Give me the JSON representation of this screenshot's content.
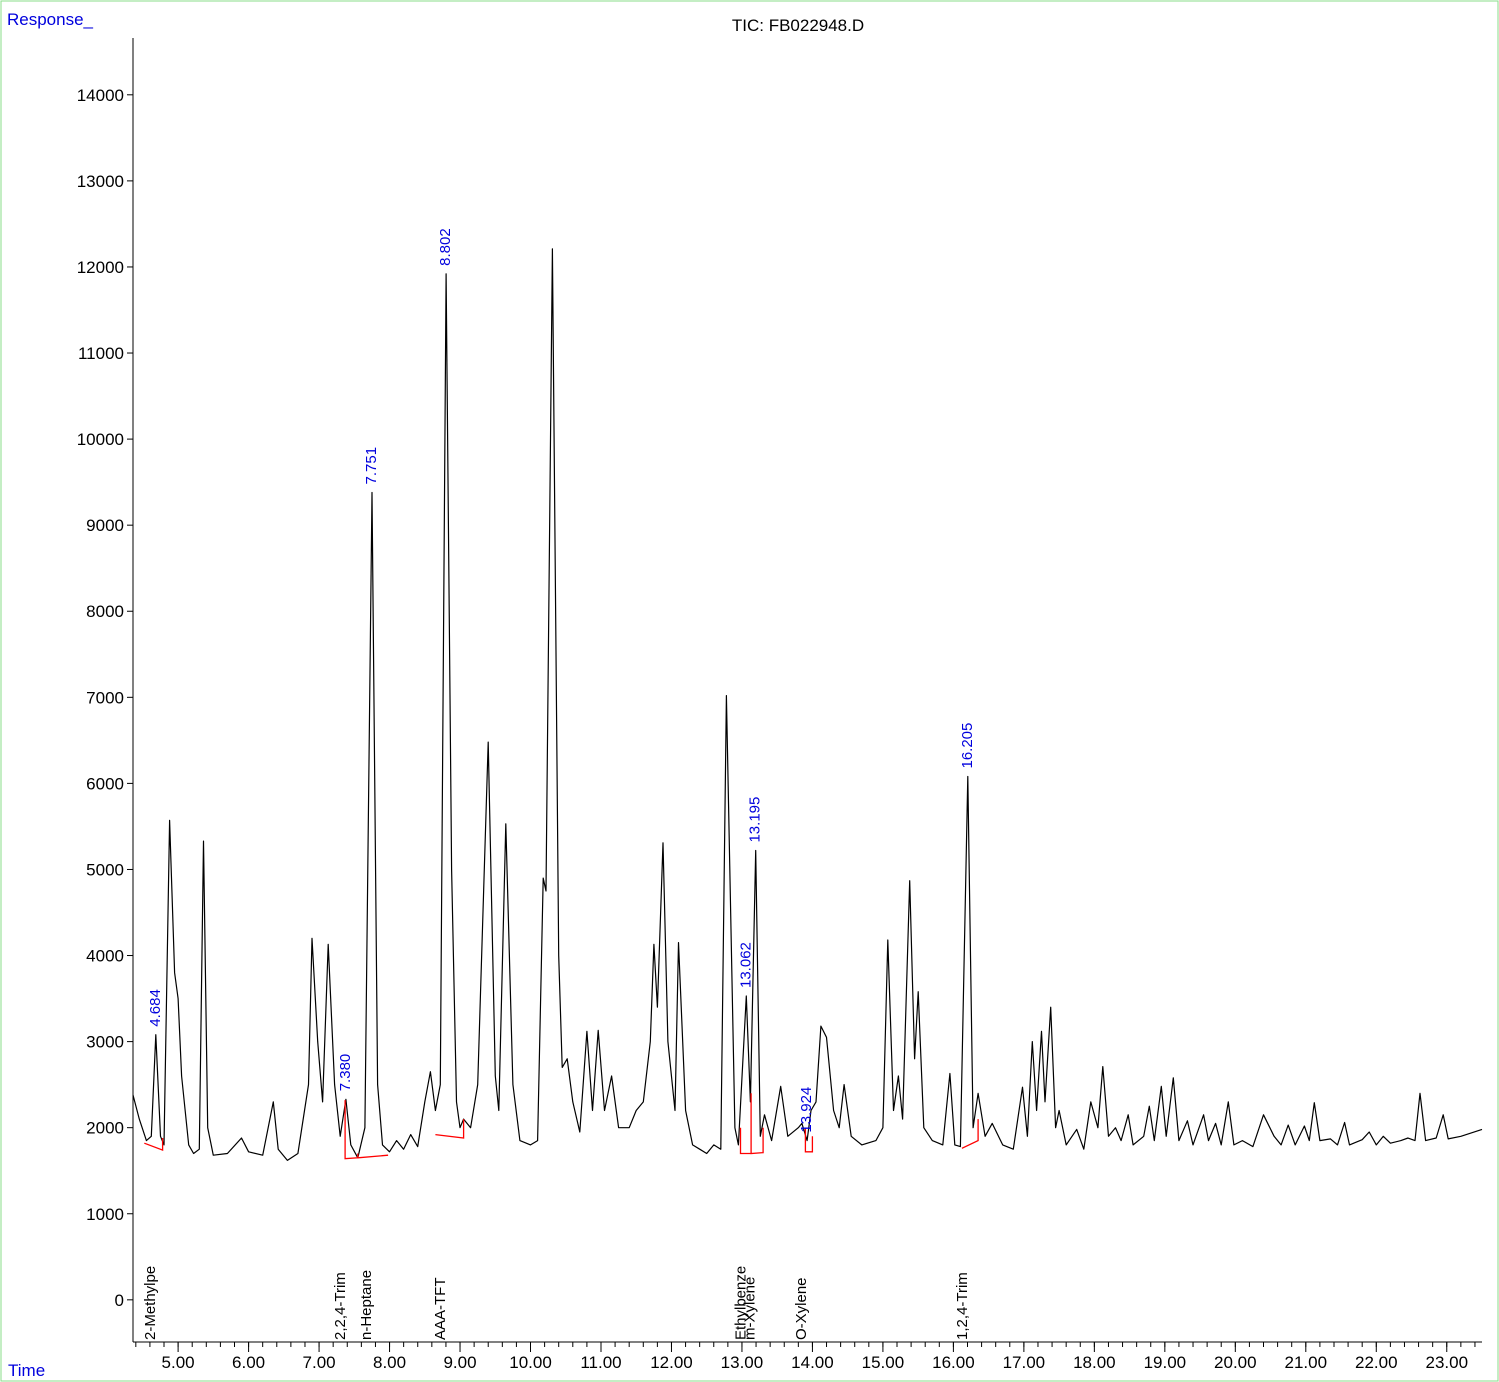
{
  "chart_data": {
    "type": "line",
    "title": "TIC: FB022948.D",
    "ylabel": "Response_",
    "xlabel": "Time",
    "color": "#000000",
    "baseline_color": "#ff0000",
    "label_color": "#0000dd",
    "xlim": [
      4.36,
      23.5
    ],
    "ylim": [
      -490,
      14660
    ],
    "xticks": [
      {
        "value": 5,
        "label": "5.00"
      },
      {
        "value": 6,
        "label": "6.00"
      },
      {
        "value": 7,
        "label": "7.00"
      },
      {
        "value": 8,
        "label": "8.00"
      },
      {
        "value": 9,
        "label": "9.00"
      },
      {
        "value": 10,
        "label": "10.00"
      },
      {
        "value": 11,
        "label": "11.00"
      },
      {
        "value": 12,
        "label": "12.00"
      },
      {
        "value": 13,
        "label": "13.00"
      },
      {
        "value": 14,
        "label": "14.00"
      },
      {
        "value": 15,
        "label": "15.00"
      },
      {
        "value": 16,
        "label": "16.00"
      },
      {
        "value": 17,
        "label": "17.00"
      },
      {
        "value": 18,
        "label": "18.00"
      },
      {
        "value": 19,
        "label": "19.00"
      },
      {
        "value": 20,
        "label": "20.00"
      },
      {
        "value": 21,
        "label": "21.00"
      },
      {
        "value": 22,
        "label": "22.00"
      },
      {
        "value": 23,
        "label": "23.00"
      }
    ],
    "xminor": 0.2,
    "yticks": [
      0,
      1000,
      2000,
      3000,
      4000,
      5000,
      6000,
      7000,
      8000,
      9000,
      10000,
      11000,
      12000,
      13000,
      14000
    ],
    "x": [
      4.36,
      4.45,
      4.55,
      4.62,
      4.684,
      4.75,
      4.8,
      4.88,
      4.95,
      5.0,
      5.05,
      5.15,
      5.22,
      5.3,
      5.36,
      5.42,
      5.5,
      5.7,
      5.9,
      6.0,
      6.2,
      6.35,
      6.42,
      6.55,
      6.7,
      6.85,
      6.9,
      6.98,
      7.05,
      7.13,
      7.22,
      7.3,
      7.38,
      7.45,
      7.55,
      7.65,
      7.751,
      7.83,
      7.9,
      8.0,
      8.1,
      8.2,
      8.3,
      8.4,
      8.5,
      8.58,
      8.65,
      8.72,
      8.802,
      8.88,
      8.95,
      9.0,
      9.05,
      9.15,
      9.25,
      9.4,
      9.5,
      9.55,
      9.65,
      9.75,
      9.85,
      10.0,
      10.1,
      10.18,
      10.22,
      10.31,
      10.4,
      10.45,
      10.52,
      10.6,
      10.7,
      10.8,
      10.88,
      10.96,
      11.05,
      11.15,
      11.25,
      11.4,
      11.5,
      11.6,
      11.7,
      11.75,
      11.8,
      11.88,
      11.95,
      12.05,
      12.1,
      12.2,
      12.3,
      12.4,
      12.5,
      12.6,
      12.7,
      12.78,
      12.9,
      12.95,
      13.062,
      13.12,
      13.195,
      13.26,
      13.32,
      13.42,
      13.55,
      13.65,
      13.8,
      13.85,
      13.924,
      13.98,
      14.05,
      14.12,
      14.2,
      14.3,
      14.38,
      14.45,
      14.55,
      14.7,
      14.9,
      15.0,
      15.07,
      15.15,
      15.22,
      15.28,
      15.38,
      15.45,
      15.5,
      15.58,
      15.7,
      15.85,
      15.95,
      16.02,
      16.1,
      16.205,
      16.28,
      16.35,
      16.45,
      16.55,
      16.7,
      16.85,
      16.98,
      17.05,
      17.12,
      17.18,
      17.25,
      17.3,
      17.38,
      17.45,
      17.5,
      17.6,
      17.75,
      17.85,
      17.95,
      18.05,
      18.12,
      18.2,
      18.3,
      18.38,
      18.48,
      18.55,
      18.7,
      18.78,
      18.85,
      18.95,
      19.02,
      19.12,
      19.2,
      19.32,
      19.4,
      19.55,
      19.62,
      19.72,
      19.8,
      19.9,
      19.98,
      20.1,
      20.25,
      20.4,
      20.55,
      20.65,
      20.75,
      20.85,
      20.98,
      21.05,
      21.12,
      21.2,
      21.35,
      21.45,
      21.55,
      21.62,
      21.8,
      21.9,
      22.0,
      22.1,
      22.2,
      22.35,
      22.45,
      22.55,
      22.62,
      22.7,
      22.85,
      22.95,
      23.02,
      23.2,
      23.5
    ],
    "values": [
      2380,
      2100,
      1850,
      1900,
      3080,
      1900,
      1800,
      5570,
      3800,
      3500,
      2600,
      1800,
      1700,
      1750,
      5330,
      2000,
      1680,
      1700,
      1880,
      1720,
      1680,
      2300,
      1750,
      1620,
      1700,
      2500,
      4200,
      3000,
      2300,
      4130,
      2500,
      1900,
      2330,
      1800,
      1650,
      2000,
      9380,
      2500,
      1800,
      1720,
      1850,
      1750,
      1920,
      1780,
      2300,
      2650,
      2200,
      2500,
      11920,
      5000,
      2300,
      2000,
      2100,
      2000,
      2500,
      6480,
      2600,
      2200,
      5530,
      2500,
      1850,
      1800,
      1850,
      4900,
      4750,
      12210,
      4000,
      2700,
      2800,
      2300,
      1950,
      3120,
      2200,
      3130,
      2200,
      2600,
      2000,
      2000,
      2200,
      2300,
      3000,
      4130,
      3400,
      5310,
      3000,
      2200,
      4150,
      2200,
      1800,
      1750,
      1700,
      1800,
      1750,
      7020,
      2000,
      1800,
      3530,
      2300,
      5220,
      1900,
      2150,
      1850,
      2480,
      1900,
      2000,
      2050,
      1850,
      2200,
      2300,
      3180,
      3050,
      2200,
      2000,
      2500,
      1900,
      1800,
      1850,
      2000,
      4180,
      2200,
      2600,
      2100,
      4870,
      2800,
      3580,
      2000,
      1850,
      1800,
      2630,
      1800,
      1780,
      6080,
      2000,
      2400,
      1900,
      2050,
      1800,
      1750,
      2470,
      1900,
      3000,
      2200,
      3120,
      2300,
      3400,
      2000,
      2200,
      1800,
      1980,
      1750,
      2300,
      2000,
      2710,
      1900,
      2000,
      1850,
      2150,
      1800,
      1900,
      2250,
      1850,
      2480,
      1900,
      2580,
      1850,
      2080,
      1800,
      2150,
      1850,
      2050,
      1800,
      2300,
      1800,
      1850,
      1780,
      2150,
      1900,
      1800,
      2030,
      1800,
      2020,
      1850,
      2290,
      1850,
      1870,
      1800,
      2060,
      1800,
      1860,
      1950,
      1800,
      1900,
      1820,
      1850,
      1880,
      1850,
      2400,
      1850,
      1880,
      2150,
      1870,
      1900,
      1980
    ],
    "peaks": [
      {
        "rt": 4.684,
        "name": "2-Methylpe"
      },
      {
        "rt": 7.38,
        "label": "7.380",
        "name": "2,2,4-Trim"
      },
      {
        "rt": 7.751,
        "name": "n-Heptane"
      },
      {
        "rt": 8.802,
        "name": "AAA-TFT"
      },
      {
        "rt": 13.062,
        "name": "Ethylbenze"
      },
      {
        "rt": 13.195,
        "name": "m-Xylene"
      },
      {
        "rt": 13.924,
        "name": "O-Xylene"
      },
      {
        "rt": 16.205,
        "name": "1,2,4-Trim"
      }
    ],
    "baselines": [
      {
        "x": [
          4.52,
          4.78,
          4.78
        ],
        "y": [
          1820,
          1740,
          1880
        ]
      },
      {
        "x": [
          7.37,
          7.37,
          7.55,
          7.55
        ],
        "y": [
          2320,
          1640,
          1650,
          1700
        ]
      },
      {
        "x": [
          7.55,
          7.98
        ],
        "y": [
          1650,
          1680
        ]
      },
      {
        "x": [
          8.65,
          9.05,
          9.05
        ],
        "y": [
          1920,
          1880,
          2100
        ]
      },
      {
        "x": [
          12.98,
          12.98,
          13.13,
          13.13,
          13.13,
          13.3,
          13.3
        ],
        "y": [
          2000,
          1700,
          1700,
          2400,
          1700,
          1710,
          2000
        ]
      },
      {
        "x": [
          13.9,
          13.9,
          14.0,
          14.0
        ],
        "y": [
          2000,
          1720,
          1720,
          1900
        ]
      },
      {
        "x": [
          16.12,
          16.35,
          16.35
        ],
        "y": [
          1760,
          1850,
          2100
        ]
      }
    ]
  }
}
